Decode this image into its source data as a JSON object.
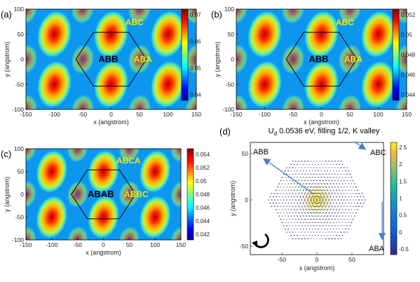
{
  "panels": [
    {
      "letter": "(a)",
      "xlabel": "x (angstrom)",
      "ylabel": "y (angstrom)",
      "xticks": [
        "-150",
        "-100",
        "-50",
        "0",
        "50",
        "100",
        "150"
      ],
      "yticks": [
        "100",
        "50",
        "0",
        "-50",
        "-100"
      ],
      "colorbar": [
        "0.07",
        "0.06",
        "0.05",
        "0.04"
      ],
      "labels": {
        "center": "ABB",
        "top": "ABC",
        "right": "ABA"
      }
    },
    {
      "letter": "(b)",
      "xlabel": "x (angstrom)",
      "ylabel": "y (angstrom)",
      "xticks": [
        "-150",
        "-100",
        "-50",
        "0",
        "50",
        "100",
        "150"
      ],
      "yticks": [
        "100",
        "50",
        "0",
        "-50",
        "-100"
      ],
      "colorbar": [
        "0.052",
        "0.05",
        "0.048",
        "0.046",
        "0.044"
      ],
      "labels": {
        "center": "ABB",
        "top": "ABC",
        "right": "ABA"
      }
    },
    {
      "letter": "(c)",
      "xlabel": "x (angstrom)",
      "ylabel": "y (angstrom)",
      "xticks": [
        "-150",
        "-100",
        "-50",
        "0",
        "50",
        "100",
        "150"
      ],
      "yticks": [
        "100",
        "50",
        "0",
        "-50",
        "-100"
      ],
      "colorbar": [
        "0.054",
        "0.052",
        "0.05",
        "0.048",
        "0.046",
        "0.044",
        "0.042"
      ],
      "labels": {
        "center": "ABAB",
        "top": "ABCA",
        "right": "ABBC"
      }
    },
    {
      "letter": "(d)",
      "title_prefix": "U",
      "title_sub": "d",
      "title_rest": " 0.0536 eV, filling 1/2, K valley",
      "xlabel": "x (angstrom)",
      "ylabel": "y (angstrom)",
      "xticks": [
        "-50",
        "0",
        "50"
      ],
      "yticks": [
        "50",
        "0",
        "-50"
      ],
      "colorbar": [
        "2.5",
        "2",
        "1.5",
        "1",
        "0.5",
        "0",
        "-0.5"
      ],
      "labels": {
        "abb": "ABB",
        "abc": "ABC",
        "aba": "ABA"
      }
    }
  ],
  "colors": {
    "hexagon": "#000000",
    "label_yellow": "#f2e600",
    "label_dark": "#000000",
    "arrow_blue": "#4a7fbf",
    "dots": "#1f2a55"
  }
}
